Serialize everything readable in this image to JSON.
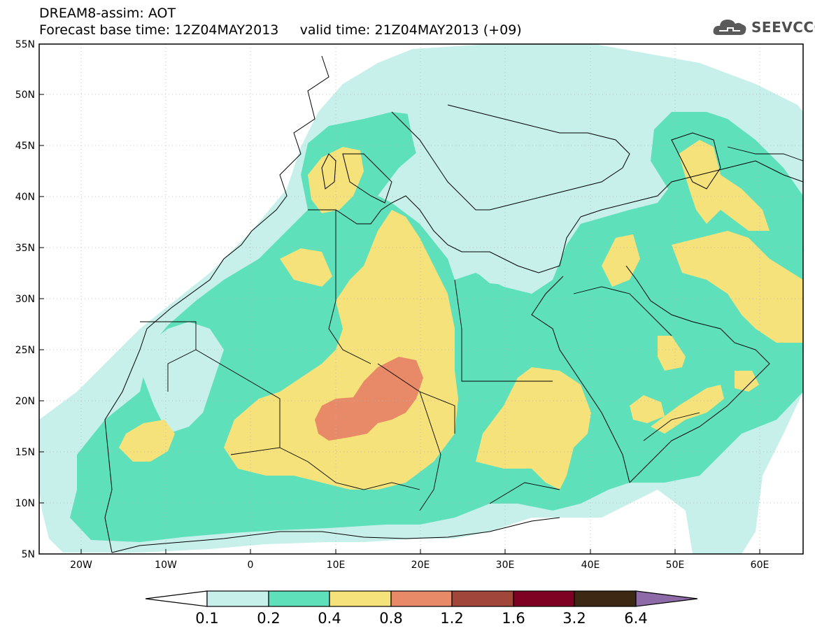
{
  "header": {
    "line1": "DREAM8-assim: AOT",
    "line2": "Forecast base time: 12Z04MAY2013     valid time: 21Z04MAY2013 (+09)"
  },
  "logo": {
    "text": "SEEVCCC",
    "icon": "cloud-logo-icon"
  },
  "map": {
    "region": "North Africa, Middle East and Mediterranean",
    "lon_range": [
      -25,
      65
    ],
    "lat_range": [
      5,
      55
    ],
    "grid": true,
    "x_ticks": [
      "20W",
      "10W",
      "0",
      "10E",
      "20E",
      "30E",
      "40E",
      "50E",
      "60E"
    ],
    "y_ticks": [
      "5N",
      "10N",
      "15N",
      "20N",
      "25N",
      "30N",
      "35N",
      "40N",
      "45N",
      "50N",
      "55N"
    ]
  },
  "colorbar": {
    "labels": [
      "0.1",
      "0.2",
      "0.4",
      "0.8",
      "1.2",
      "1.6",
      "3.2",
      "6.4"
    ],
    "colors": [
      "#ffffff",
      "#c7f0eb",
      "#5ee0bb",
      "#f5e27a",
      "#e88a67",
      "#a0463b",
      "#7e0023",
      "#3d2814",
      "#8e6ba8"
    ]
  },
  "colors": {
    "aot_0.1_0.2": "#c7f0eb",
    "aot_0.2_0.4": "#5ee0bb",
    "aot_0.4_0.8": "#f5e27a",
    "aot_0.8_1.2": "#e88a67"
  }
}
